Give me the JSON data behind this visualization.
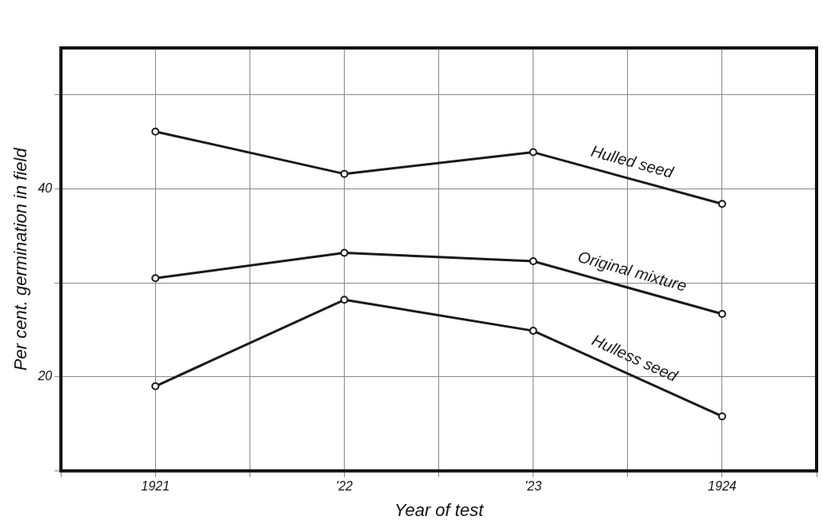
{
  "chart_data": {
    "type": "line",
    "xlabel": "Year of test",
    "ylabel": "Per cent. germination in field",
    "xlim": [
      1920.5,
      1924.5
    ],
    "ylim": [
      10,
      55
    ],
    "xticks": [
      {
        "value": 1920.5,
        "label": null
      },
      {
        "value": 1921,
        "label": "1921"
      },
      {
        "value": 1921.5,
        "label": null
      },
      {
        "value": 1922,
        "label": "'22"
      },
      {
        "value": 1922.5,
        "label": null
      },
      {
        "value": 1923,
        "label": "'23"
      },
      {
        "value": 1923.5,
        "label": null
      },
      {
        "value": 1924,
        "label": "1924"
      },
      {
        "value": 1924.5,
        "label": null
      }
    ],
    "yticks": [
      {
        "value": 10,
        "label": null
      },
      {
        "value": 20,
        "label": "20"
      },
      {
        "value": 30,
        "label": null
      },
      {
        "value": 40,
        "label": "40"
      },
      {
        "value": 50,
        "label": null
      }
    ],
    "x": [
      1921,
      1922,
      1923,
      1924
    ],
    "series": [
      {
        "name": "Hulled seed",
        "color": "#1a1a1a",
        "values": [
          46.1,
          41.6,
          43.9,
          38.4
        ]
      },
      {
        "name": "Original mixture",
        "color": "#1a1a1a",
        "values": [
          30.5,
          33.2,
          32.3,
          26.7
        ]
      },
      {
        "name": "Hulless seed",
        "color": "#1a1a1a",
        "values": [
          19.0,
          28.2,
          24.9,
          15.8
        ]
      }
    ],
    "grid": true,
    "legend": false,
    "marker": "circle",
    "line_style": "solid"
  }
}
